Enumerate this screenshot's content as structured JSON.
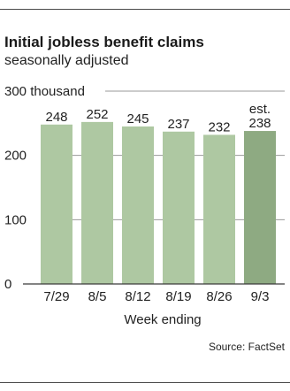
{
  "chart_data": {
    "type": "bar",
    "title": "Initial jobless benefit claims",
    "subtitle": "seasonally adjusted",
    "categories": [
      "7/29",
      "8/5",
      "8/12",
      "8/19",
      "8/26",
      "9/3"
    ],
    "values": [
      248,
      252,
      245,
      237,
      232,
      238
    ],
    "value_labels": [
      "248",
      "252",
      "245",
      "237",
      "232",
      "238"
    ],
    "estimate_note": "est.",
    "estimated": [
      false,
      false,
      false,
      false,
      false,
      true
    ],
    "ylim": [
      0,
      300
    ],
    "yticks": [
      0,
      100,
      200,
      300
    ],
    "ytick_labels": [
      "0",
      "100",
      "200",
      "300 thousand"
    ],
    "xlabel": "Week ending",
    "ylabel": "",
    "grid": true,
    "colors": {
      "bar": "#aec8a2",
      "bar_estimate": "#8eaa82",
      "grid": "#9a9a9a"
    }
  },
  "source": "Source: FactSet"
}
